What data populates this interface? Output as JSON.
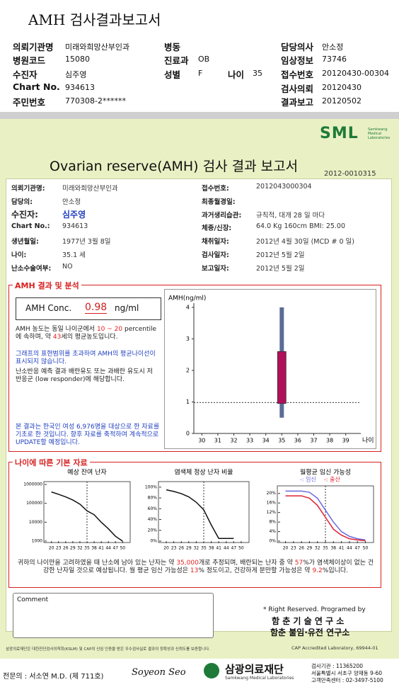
{
  "header": {
    "title": "AMH 검사결과보고서",
    "fields": [
      {
        "label": "의뢰기관명",
        "value": "미래와희망산부인과"
      },
      {
        "label": "병동"
      },
      {
        "label": "담당의사",
        "value": "안소정"
      },
      {
        "label": "병원코드",
        "value": "15080"
      },
      {
        "label": "진료과",
        "value": "OB"
      },
      {
        "label": "임상정보",
        "value": "73746"
      },
      {
        "label": "수진자",
        "value": "심주영"
      },
      {
        "label": "성별",
        "value": "F"
      },
      {
        "label": "나이",
        "value": "35"
      },
      {
        "label": "접수번호",
        "value": "20120430-00304"
      },
      {
        "label": "Chart No.",
        "value": "934613"
      },
      {
        "label": "검사의뢰",
        "value": "20120430"
      },
      {
        "label": "주민번호",
        "value": "770308-2******"
      },
      {
        "label": "결과보고",
        "value": "20120502"
      }
    ]
  },
  "report": {
    "logo": "SML",
    "logo_sub": "Samkwang Medical Laboratories",
    "title": "Ovarian reserve(AMH) 검사 결과 보고서",
    "number": "2012-0010315",
    "left": [
      {
        "label": "의뢰기관명:",
        "value": "미래와희망산부인과"
      },
      {
        "label": "담당의:",
        "value": "안소정"
      },
      {
        "label": "수진자:",
        "value": "심주영"
      },
      {
        "label": "Chart No.:",
        "value": "934613"
      },
      {
        "label": "생년월일:",
        "value": "1977년 3월 8일"
      },
      {
        "label": "나이:",
        "value": "35.1 세"
      },
      {
        "label": "난소수술여부:",
        "value": "NO"
      }
    ],
    "right": [
      {
        "label": "접수번호:",
        "value": "2012043000304"
      },
      {
        "label": "최종월경일:"
      },
      {
        "label": "과거생리습관:",
        "value": "규칙적, 대개  28 일 마다"
      },
      {
        "label": "체중/신장:",
        "value": "64.0 Kg    160cm    BMI: 25.00"
      },
      {
        "label": "채취일자:",
        "value": "2012년 4월 30일  (MCD # 0 일)"
      },
      {
        "label": "검사일자:",
        "value": "2012년 5월 2일"
      },
      {
        "label": "보고일자:",
        "value": "2012년 5월 2일"
      }
    ]
  },
  "amh": {
    "heading": "AMH 결과 및 분석",
    "label": "AMH Conc.",
    "value": "0.98",
    "unit": "ng/ml",
    "p1": [
      "AMH 농도는 동일 나이군에서",
      "10 ~ 20",
      "percentile에 속하며, 약",
      "43",
      "세의 평균농도입니다."
    ],
    "p2": "그래프의 표현범위를 초과하여 AMH의 평균나이선이 표시되지 않습니다.",
    "p3": "난소반응 예측 결과 배란유도 또는 과배란 유도시 저반응군 (low responder)에 해당합니다.",
    "p4": "본 결과는 한국인 여성 6,976명을 대상으로 한 자료를 기초로 한 것입니다. 향후 자료를 축적하여 계속적으로 UPDATE할 예정입니다."
  },
  "basic": {
    "heading": "나이에 따른 기본 자료",
    "summary": [
      "귀하의 나이만을 고려하였을 때 난소에 남아 있는 난자는 약",
      "35,000",
      "개로 추정되며, 배란되는 난자 중 약",
      "57",
      "%가 염색체이상이 없는 건강한 난자일 것으로 예상됩니다. 월 평균 임신 가능성은",
      "13",
      "% 정도이고, 건강하게 분만할 가능성은 약",
      "9.2",
      "%입니다."
    ]
  },
  "comment": "Comment",
  "credits": [
    "* Right Reserved. Programed by",
    "함 춘 기 술 연 구 소",
    "함춘 불임·유전 연구소"
  ],
  "footer": {
    "notice": "삼광의료재단은 대한진단검사의학회(KSLM) 및 CAP의 신임 인증을 받은 우수검사실로 결과의 정확성과 신뢰도를 보증합니다.",
    "cap": "CAP Accredited Laboratory, 69944-01",
    "doctor": "전문의 : 서소연 M.D. (제 711호)",
    "signature": "Soyeon Seo",
    "org": "삼광의료재단",
    "org_en": "Samkwang Medical Laboratories",
    "info": [
      "검사기관 : 11365200",
      "서울특별시 서초구 양재동 9-60",
      "고객만족센터 : 02-3497-5100"
    ]
  },
  "chart_data": [
    {
      "type": "range",
      "y_label": "AMH(ng/ml)",
      "x_label": "나이",
      "x": [
        35
      ],
      "range_low": [
        0.5
      ],
      "range_high": [
        4
      ],
      "box_low": [
        0.95
      ],
      "box_high": [
        2.6
      ],
      "range_color": "#5a6d95",
      "box_color": "#b0105a",
      "hline": 0.98,
      "xlim": [
        29.5,
        39.5
      ],
      "xticks": [
        30,
        31,
        32,
        33,
        34,
        35,
        36,
        37,
        38,
        39
      ],
      "ylim": [
        0,
        4
      ],
      "yticks": [
        0,
        1,
        2,
        3,
        4
      ]
    },
    {
      "type": "line",
      "title": "예상 잔여 난자",
      "log": true,
      "vline": 35,
      "x": [
        20,
        23,
        26,
        29,
        32,
        35,
        38,
        41,
        44,
        47,
        50
      ],
      "series": [
        {
          "color": "#111111",
          "values": [
            400000,
            300000,
            220000,
            150000,
            90000,
            40000,
            25000,
            10000,
            4500,
            1800,
            1000
          ]
        }
      ],
      "xlim": [
        18,
        52
      ],
      "xticks": [
        20,
        23,
        26,
        29,
        32,
        35,
        38,
        41,
        44,
        47,
        50
      ],
      "ylim": [
        1000,
        1000000
      ],
      "yticks": [
        1000,
        10000,
        100000,
        1000000
      ]
    },
    {
      "type": "line",
      "title": "염색체 정상 난자 비율",
      "vline": 35,
      "x": [
        20,
        23,
        26,
        29,
        32,
        35,
        38,
        41,
        44,
        47,
        50
      ],
      "series": [
        {
          "color": "#111111",
          "values": [
            95,
            92,
            88,
            82,
            72,
            58,
            30,
            5,
            5,
            5,
            null
          ]
        }
      ],
      "xlim": [
        18,
        52
      ],
      "xticks": [
        20,
        23,
        26,
        29,
        32,
        35,
        38,
        41,
        44,
        47,
        50
      ],
      "ylim": [
        0,
        105
      ],
      "yticks": [
        {
          "value": 0,
          "label": "0%"
        },
        {
          "value": 20,
          "label": "20%"
        },
        {
          "value": 40,
          "label": "40%"
        },
        {
          "value": 60,
          "label": "60%"
        },
        {
          "value": 80,
          "label": "80%"
        },
        {
          "value": 100,
          "label": "100%"
        }
      ]
    },
    {
      "type": "line",
      "title": "월평균 임신 가능성",
      "vline": 35,
      "x": [
        20,
        23,
        26,
        29,
        32,
        35,
        38,
        41,
        44,
        47,
        50
      ],
      "series": [
        {
          "name": "-: 임신",
          "color": "#6a6ae0",
          "values": [
            21,
            21,
            21,
            20.5,
            18,
            13,
            8,
            4,
            2,
            1,
            0.5
          ]
        },
        {
          "name": "-: 출산",
          "color": "#e02030",
          "values": [
            19,
            19,
            19,
            18,
            15,
            10,
            5,
            2.5,
            1,
            0.5,
            0.2
          ]
        }
      ],
      "xlim": [
        18,
        52
      ],
      "xticks": [
        20,
        23,
        26,
        29,
        32,
        35,
        38,
        41,
        44,
        47,
        50
      ],
      "ylim": [
        0,
        22
      ],
      "yticks": [
        {
          "value": 0,
          "label": "0%"
        },
        {
          "value": 4,
          "label": "4%"
        },
        {
          "value": 8,
          "label": "8%"
        },
        {
          "value": 12,
          "label": "12%"
        },
        {
          "value": 16,
          "label": "16%"
        },
        {
          "value": 20,
          "label": "20%"
        }
      ]
    }
  ]
}
